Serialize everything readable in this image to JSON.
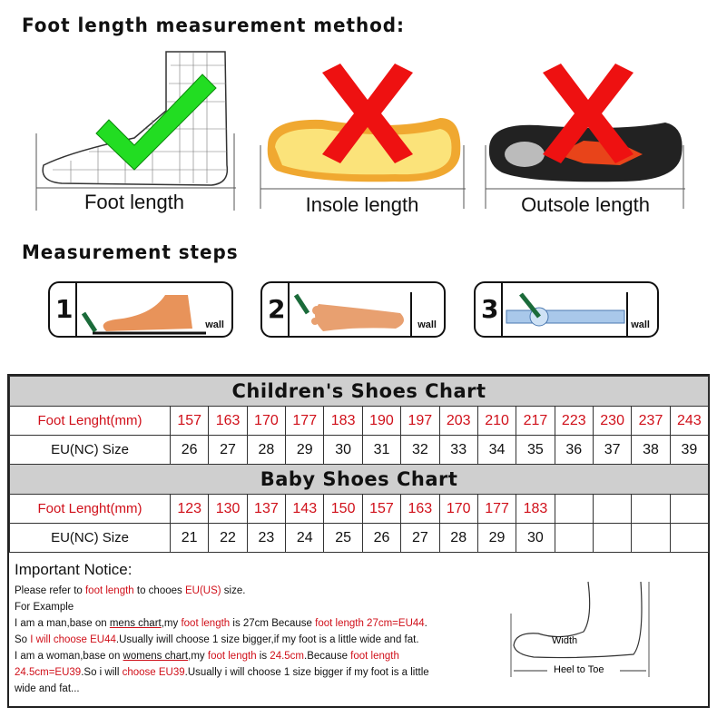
{
  "title": "Foot length measurement method:",
  "methods": [
    {
      "label": "Foot length",
      "mark": "check-icon",
      "color": "#22dd22"
    },
    {
      "label": "Insole length",
      "mark": "cross-icon",
      "color": "#ee1111"
    },
    {
      "label": "Outsole length",
      "mark": "cross-icon",
      "color": "#ee1111"
    }
  ],
  "steps_title": "Measurement steps",
  "steps": [
    {
      "num": "1",
      "wall": "wall"
    },
    {
      "num": "2",
      "wall": "wall"
    },
    {
      "num": "3",
      "wall": "wall"
    }
  ],
  "children": {
    "title": "Children's Shoes Chart",
    "row1_label": "Foot Lenght(mm)",
    "row2_label": "EU(NC) Size",
    "lengths": [
      "157",
      "163",
      "170",
      "177",
      "183",
      "190",
      "197",
      "203",
      "210",
      "217",
      "223",
      "230",
      "237",
      "243"
    ],
    "sizes": [
      "26",
      "27",
      "28",
      "29",
      "30",
      "31",
      "32",
      "33",
      "34",
      "35",
      "36",
      "37",
      "38",
      "39"
    ]
  },
  "baby": {
    "title": "Baby Shoes Chart",
    "row1_label": "Foot Lenght(mm)",
    "row2_label": "EU(NC) Size",
    "lengths": [
      "123",
      "130",
      "137",
      "143",
      "150",
      "157",
      "163",
      "170",
      "177",
      "183",
      "",
      "",
      "",
      ""
    ],
    "sizes": [
      "21",
      "22",
      "23",
      "24",
      "25",
      "26",
      "27",
      "28",
      "29",
      "30",
      "",
      "",
      "",
      ""
    ]
  },
  "notice": {
    "title": "Important Notice:",
    "l1": [
      "Please refer to ",
      "foot length",
      " to chooes ",
      "EU(US)",
      " size."
    ],
    "l2": "For Example",
    "l3": [
      "I am a man,base on ",
      "mens chart",
      ",my ",
      "foot length",
      " is 27cm Because ",
      "foot length 27cm=EU44",
      "."
    ],
    "l4": [
      "So ",
      "I will choose EU44",
      ".Usually iwill choose 1 size bigger,if my foot is a little wide and fat."
    ],
    "l5": [
      "I am a woman,base on ",
      "womens chart",
      ",my ",
      "foot length",
      " is ",
      "24.5cm",
      ".Because ",
      "foot length"
    ],
    "l6": [
      "24.5cm=EU39",
      ".So i will ",
      "choose EU39",
      ".Usually i will choose 1 size bigger if my foot is a little"
    ],
    "l7": "wide and fat...",
    "diagram": {
      "width": "Width",
      "heel": "Heel to Toe"
    }
  }
}
